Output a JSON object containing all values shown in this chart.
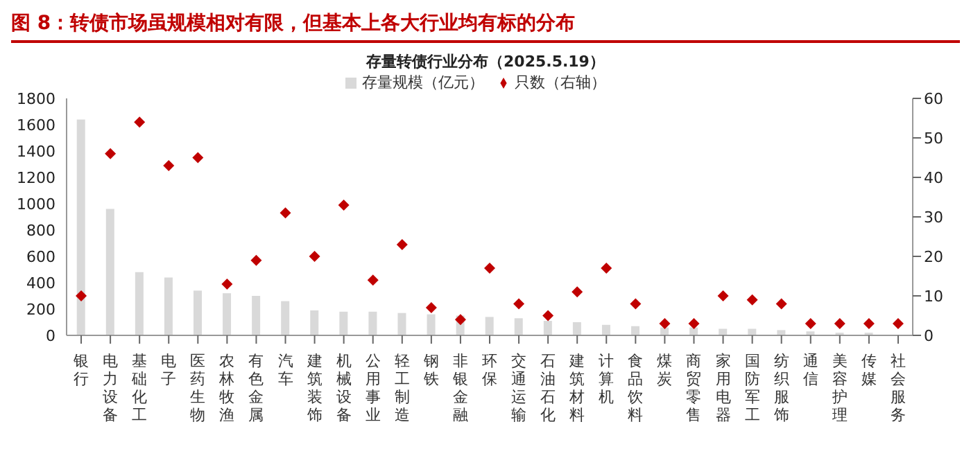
{
  "chart_data": {
    "type": "bar",
    "title": "图 8：转债市场虽规模相对有限，但基本上各大行业均有标的分布",
    "subtitle": "存量转债行业分布（2025.5.19）",
    "categories": [
      "银行",
      "电力设备",
      "基础化工",
      "电子",
      "医药生物",
      "农林牧渔",
      "有色金属",
      "汽车",
      "建筑装饰",
      "机械设备",
      "公用事业",
      "轻工制造",
      "钢铁",
      "非银金融",
      "环保",
      "交通运输",
      "石油石化",
      "建筑材料",
      "计算机",
      "食品饮料",
      "煤炭",
      "商贸零售",
      "家用电器",
      "国防军工",
      "纺织服饰",
      "通信",
      "美容护理",
      "传媒",
      "社会服务"
    ],
    "series": [
      {
        "name": "存量规模（亿元）",
        "color": "#d9d9d9",
        "values": [
          1640,
          960,
          480,
          440,
          340,
          320,
          300,
          260,
          190,
          180,
          180,
          170,
          160,
          150,
          140,
          130,
          110,
          100,
          80,
          70,
          60,
          60,
          50,
          50,
          40,
          30,
          20,
          20,
          null
        ]
      },
      {
        "name": "只数（右轴）",
        "type": "scatter",
        "axis": "y2",
        "color": "#c00000",
        "marker": "diamond",
        "values": [
          10,
          46,
          54,
          43,
          45,
          13,
          19,
          31,
          20,
          33,
          14,
          23,
          7,
          4,
          17,
          8,
          5,
          11,
          17,
          8,
          3,
          3,
          10,
          9,
          8,
          3,
          3,
          3,
          3
        ]
      }
    ],
    "ylim": [
      0,
      1800
    ],
    "yticks": [
      0,
      200,
      400,
      600,
      800,
      1000,
      1200,
      1400,
      1600,
      1800
    ],
    "y2lim": [
      0,
      60
    ],
    "y2ticks": [
      0,
      10,
      20,
      30,
      40,
      50,
      60
    ],
    "legend": "top"
  }
}
